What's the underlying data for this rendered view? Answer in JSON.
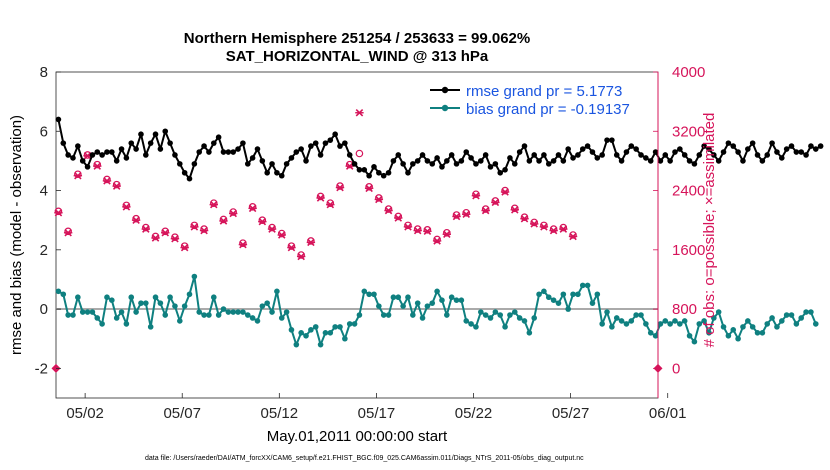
{
  "chart_data": {
    "type": "line",
    "title": "Northern Hemisphere 251254 / 253633 = 99.062%",
    "subtitle": "SAT_HORIZONTAL_WIND @ 313 hPa",
    "xlabel": "May.01,2011 00:00:00 start",
    "ylabel": "rmse and bias (model - observation)",
    "y2label": "# of obs: o=possible; ×=assimilated",
    "footnote": "data file: /Users/raeder/DAI/ATM_forcXX/CAM6_setup/f.e21.FHIST_BGC.f09_025.CAM6assim.011/Diags_NTrS_2011-05/obs_diag_output.nc",
    "xlim": [
      0.5,
      31.5
    ],
    "ylim": [
      -3,
      8
    ],
    "y2lim": [
      -400,
      4000
    ],
    "x_ticks": [
      2,
      7,
      12,
      17,
      22,
      27,
      32
    ],
    "x_tick_labels": [
      "05/02",
      "05/07",
      "05/12",
      "05/17",
      "05/22",
      "05/27",
      "06/01"
    ],
    "y_ticks": [
      "-2",
      "0",
      "2",
      "4",
      "6",
      "8"
    ],
    "y2_ticks": [
      "0",
      "800",
      "1600",
      "2400",
      "3200",
      "4000"
    ],
    "legend_location": "top-right",
    "colors": {
      "rmse": "#000000",
      "bias": "#0f8080",
      "obs": "#d6145a",
      "zero": "#aaaaaa"
    },
    "series": [
      {
        "name": "rmse grand pr = 5.1773",
        "color": "#000000",
        "x_start": 0.625,
        "x_step": 0.25,
        "values": [
          6.4,
          5.6,
          5.2,
          5.1,
          5.5,
          5.0,
          4.8,
          5.2,
          5.3,
          5.2,
          5.3,
          5.3,
          5.0,
          5.4,
          5.1,
          5.6,
          5.4,
          5.9,
          5.2,
          5.6,
          5.9,
          5.4,
          6.0,
          5.6,
          5.2,
          4.9,
          4.6,
          4.4,
          4.9,
          5.3,
          5.5,
          5.3,
          5.6,
          5.8,
          5.3,
          5.3,
          5.3,
          5.4,
          5.6,
          4.9,
          5.1,
          5.4,
          5.0,
          4.6,
          4.9,
          4.6,
          4.5,
          4.9,
          5.1,
          5.3,
          5.4,
          5.0,
          5.5,
          5.6,
          5.2,
          5.6,
          5.7,
          5.9,
          5.5,
          5.6,
          5.2,
          4.9,
          4.7,
          4.7,
          4.5,
          4.8,
          4.6,
          4.5,
          4.6,
          5.0,
          5.2,
          4.9,
          4.6,
          4.9,
          5.0,
          5.2,
          5.0,
          4.9,
          5.1,
          4.8,
          5.0,
          5.2,
          4.9,
          5.0,
          5.3,
          5.1,
          4.9,
          5.0,
          5.2,
          4.8,
          4.9,
          4.6,
          4.7,
          5.1,
          4.9,
          5.3,
          5.5,
          5.0,
          5.2,
          5.0,
          5.2,
          4.9,
          5.0,
          5.2,
          5.0,
          5.4,
          5.1,
          5.2,
          5.4,
          5.5,
          5.3,
          5.1,
          5.2,
          5.7,
          5.7,
          5.2,
          5.0,
          5.3,
          5.5,
          5.4,
          5.2,
          5.1,
          5.0,
          5.3,
          5.0,
          5.2,
          5.0,
          5.3,
          5.4,
          5.2,
          5.0,
          4.9,
          5.2,
          5.5,
          5.4,
          5.2,
          5.0,
          5.3,
          5.6,
          5.5,
          5.3,
          5.0,
          5.4,
          5.6,
          5.2,
          5.0,
          5.2,
          5.6,
          5.3,
          5.1,
          5.4,
          5.5,
          5.3,
          5.3,
          5.2,
          5.5,
          5.4,
          5.5
        ]
      },
      {
        "name": "bias grand pr = -0.19137",
        "color": "#0f8080",
        "x_start": 0.625,
        "x_step": 0.25,
        "values": [
          0.6,
          0.5,
          -0.2,
          -0.2,
          0.4,
          -0.1,
          -0.1,
          -0.1,
          -0.3,
          -0.5,
          0.4,
          0.3,
          -0.3,
          -0.1,
          -0.5,
          0.4,
          -0.1,
          0.2,
          0.2,
          -0.6,
          0.4,
          0.2,
          -0.2,
          0.4,
          0.1,
          -0.4,
          0.1,
          0.5,
          1.1,
          -0.1,
          -0.2,
          -0.2,
          0.4,
          -0.2,
          0.0,
          -0.1,
          -0.1,
          -0.1,
          -0.1,
          -0.2,
          -0.3,
          -0.4,
          0.1,
          0.2,
          -0.1,
          0.6,
          -0.3,
          -0.1,
          -0.7,
          -1.2,
          -0.8,
          -0.9,
          -0.7,
          -0.6,
          -1.2,
          -0.8,
          -0.8,
          -0.6,
          -0.6,
          -1.0,
          -0.5,
          -0.5,
          -0.2,
          0.6,
          0.5,
          0.5,
          0.1,
          -0.2,
          -0.2,
          0.4,
          0.4,
          0.1,
          0.4,
          -0.2,
          0.2,
          -0.3,
          0.1,
          0.2,
          0.6,
          0.3,
          -0.2,
          0.4,
          0.3,
          0.3,
          -0.4,
          -0.5,
          -0.6,
          -0.1,
          -0.2,
          -0.3,
          -0.1,
          -0.2,
          -0.6,
          -0.2,
          -0.1,
          -0.3,
          -0.4,
          -0.8,
          -0.3,
          0.5,
          0.6,
          0.4,
          0.3,
          0.2,
          0.5,
          0.0,
          0.5,
          0.5,
          0.8,
          0.8,
          0.2,
          0.5,
          -0.5,
          -0.1,
          -0.6,
          -0.3,
          -0.4,
          -0.5,
          -0.4,
          -0.2,
          -0.2,
          -0.5,
          -0.8,
          -0.9,
          -0.5,
          -0.4,
          -0.5,
          -0.4,
          -0.5,
          -0.4,
          -0.9,
          -1.1,
          -0.5,
          -0.4,
          -0.8,
          -0.3,
          -0.1,
          -0.6,
          -0.9,
          -0.7,
          -1.0,
          -0.6,
          -0.4,
          -0.6,
          -0.8,
          -0.8,
          -0.5,
          -0.3,
          -0.6,
          -0.4,
          -0.2,
          -0.2,
          -0.5,
          -0.3,
          -0.1,
          -0.1,
          -0.5
        ]
      }
    ],
    "obs_possible": {
      "name": "possible",
      "marker": "o",
      "x_start": 0.625,
      "x_step": 0.5,
      "values": [
        2120,
        1850,
        2620,
        2880,
        2750,
        2550,
        2480,
        2200,
        2020,
        1900,
        1780,
        1850,
        1770,
        1650,
        1930,
        1880,
        2230,
        2010,
        2110,
        1690,
        2180,
        2000,
        1900,
        1820,
        1650,
        1530,
        1720,
        2320,
        2230,
        2460,
        2750,
        2900,
        2450,
        2300,
        2150,
        2050,
        1930,
        1880,
        1870,
        1740,
        1830,
        2070,
        2100,
        2350,
        2150,
        2260,
        2400,
        2160,
        2040,
        1970,
        1930,
        1880,
        1900,
        1800
      ]
    },
    "obs_assimilated": {
      "name": "assimilated",
      "marker": "x",
      "x_start": 0.625,
      "x_step": 0.5,
      "values": [
        2100,
        1830,
        2600,
        2870,
        2730,
        2530,
        2460,
        2180,
        2000,
        1880,
        1760,
        1830,
        1750,
        1630,
        1910,
        1860,
        2210,
        1990,
        2090,
        1670,
        2160,
        1980,
        1880,
        1800,
        1630,
        1510,
        1700,
        2300,
        2210,
        2440,
        2730,
        3450,
        2430,
        2280,
        2130,
        2030,
        1910,
        1860,
        1850,
        1720,
        1810,
        2050,
        2080,
        2330,
        2130,
        2240,
        2380,
        2140,
        2020,
        1950,
        1910,
        1860,
        1880,
        1780
      ]
    },
    "obs_endpoints": {
      "x": [
        0.5,
        31.5
      ],
      "values": [
        0,
        0
      ]
    }
  }
}
